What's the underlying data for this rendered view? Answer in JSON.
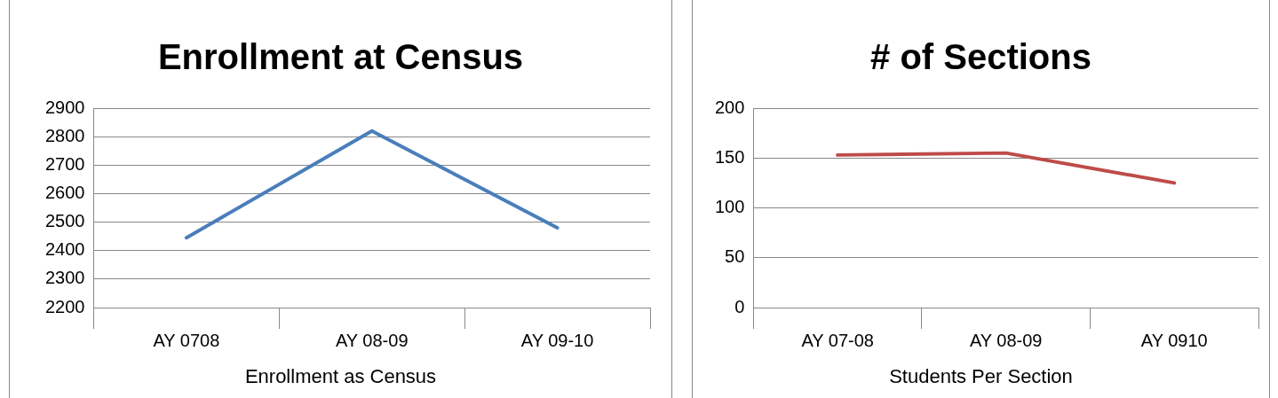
{
  "chart_data": [
    {
      "type": "line",
      "title": "Enrollment at Census",
      "xlabel": "Enrollment as Census",
      "categories": [
        "AY 0708",
        "AY 08-09",
        "AY 09-10"
      ],
      "series": [
        {
          "color": "#4a7ebb",
          "values": [
            2445,
            2820,
            2480
          ]
        }
      ],
      "ylim": [
        2200,
        2900
      ],
      "yticks": [
        2200,
        2300,
        2400,
        2500,
        2600,
        2700,
        2800,
        2900
      ],
      "grid": "y",
      "marker": "none",
      "legend": false
    },
    {
      "type": "line",
      "title": "# of Sections",
      "xlabel": "Students  Per Section",
      "categories": [
        "AY 07-08",
        "AY 08-09",
        "AY 0910"
      ],
      "series": [
        {
          "color": "#be4b48",
          "values": [
            153,
            155,
            125
          ]
        }
      ],
      "ylim": [
        0,
        200
      ],
      "yticks": [
        0,
        50,
        100,
        150,
        200
      ],
      "grid": "y",
      "marker": "none",
      "legend": false
    }
  ]
}
